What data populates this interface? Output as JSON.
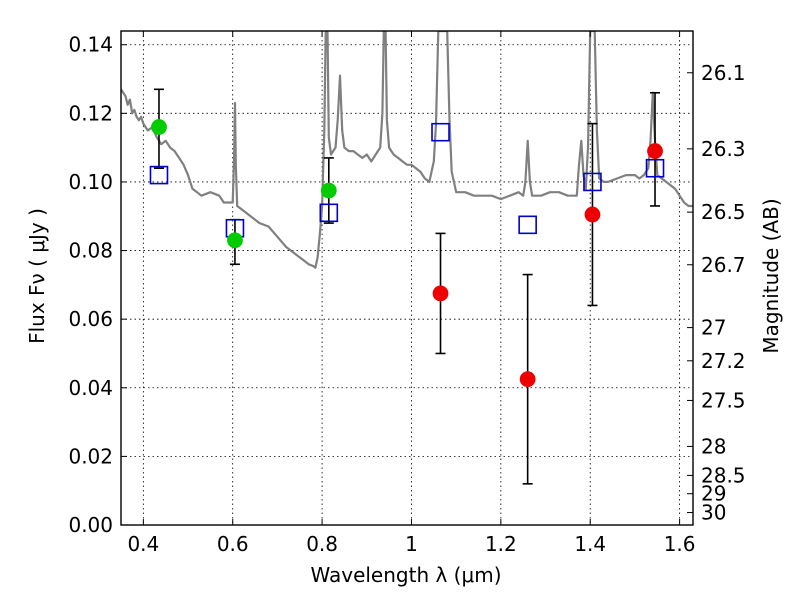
{
  "chart_data": {
    "type": "scatter",
    "xlabel": "Wavelength  λ (μm)",
    "ylabel": "Flux  Fν  ( μJy )",
    "ylabel2": "Magnitude (AB)",
    "xlim": [
      0.35,
      1.63
    ],
    "ylim": [
      0.0,
      0.144
    ],
    "grid": true,
    "x_ticks": [
      {
        "value": 0.4,
        "label": "0.4"
      },
      {
        "value": 0.6,
        "label": "0.6"
      },
      {
        "value": 0.8,
        "label": "0.8"
      },
      {
        "value": 1.0,
        "label": "1"
      },
      {
        "value": 1.2,
        "label": "1.2"
      },
      {
        "value": 1.4,
        "label": "1.4"
      },
      {
        "value": 1.6,
        "label": "1.6"
      }
    ],
    "y_ticks": [
      {
        "value": 0.0,
        "label": "0.00"
      },
      {
        "value": 0.02,
        "label": "0.02"
      },
      {
        "value": 0.04,
        "label": "0.04"
      },
      {
        "value": 0.06,
        "label": "0.06"
      },
      {
        "value": 0.08,
        "label": "0.08"
      },
      {
        "value": 0.1,
        "label": "0.10"
      },
      {
        "value": 0.12,
        "label": "0.12"
      },
      {
        "value": 0.14,
        "label": "0.14"
      }
    ],
    "mag_ticks": [
      {
        "mag": 26.1,
        "label": "26.1"
      },
      {
        "mag": 26.3,
        "label": "26.3"
      },
      {
        "mag": 26.5,
        "label": "26.5"
      },
      {
        "mag": 26.7,
        "label": "26.7"
      },
      {
        "mag": 27.0,
        "label": "27"
      },
      {
        "mag": 27.2,
        "label": "27.2"
      },
      {
        "mag": 27.5,
        "label": "27.5"
      },
      {
        "mag": 28.0,
        "label": "28"
      },
      {
        "mag": 28.5,
        "label": "28.5"
      },
      {
        "mag": 29.0,
        "label": "29"
      },
      {
        "mag": 30.0,
        "label": "30"
      }
    ],
    "model_spectrum": {
      "color": "#808080",
      "points": [
        [
          0.35,
          0.127
        ],
        [
          0.36,
          0.125
        ],
        [
          0.365,
          0.1225
        ],
        [
          0.37,
          0.124
        ],
        [
          0.375,
          0.12
        ],
        [
          0.38,
          0.121
        ],
        [
          0.385,
          0.119
        ],
        [
          0.39,
          0.118
        ],
        [
          0.395,
          0.119
        ],
        [
          0.4,
          0.117
        ],
        [
          0.41,
          0.115
        ],
        [
          0.42,
          0.116
        ],
        [
          0.43,
          0.113
        ],
        [
          0.44,
          0.111
        ],
        [
          0.45,
          0.112
        ],
        [
          0.46,
          0.11
        ],
        [
          0.47,
          0.109
        ],
        [
          0.48,
          0.107
        ],
        [
          0.49,
          0.105
        ],
        [
          0.5,
          0.102
        ],
        [
          0.51,
          0.098
        ],
        [
          0.52,
          0.097
        ],
        [
          0.53,
          0.096
        ],
        [
          0.55,
          0.097
        ],
        [
          0.57,
          0.096
        ],
        [
          0.58,
          0.094
        ],
        [
          0.595,
          0.094
        ],
        [
          0.6,
          0.094
        ],
        [
          0.603,
          0.107
        ],
        [
          0.605,
          0.123
        ],
        [
          0.607,
          0.105
        ],
        [
          0.61,
          0.093
        ],
        [
          0.62,
          0.092
        ],
        [
          0.64,
          0.09
        ],
        [
          0.66,
          0.088
        ],
        [
          0.68,
          0.087
        ],
        [
          0.7,
          0.084
        ],
        [
          0.72,
          0.081
        ],
        [
          0.74,
          0.079
        ],
        [
          0.76,
          0.077
        ],
        [
          0.77,
          0.076
        ],
        [
          0.78,
          0.0755
        ],
        [
          0.785,
          0.075
        ],
        [
          0.79,
          0.078
        ],
        [
          0.795,
          0.085
        ],
        [
          0.8,
          0.093
        ],
        [
          0.805,
          0.115
        ],
        [
          0.808,
          0.144
        ],
        [
          0.812,
          0.144
        ],
        [
          0.815,
          0.113
        ],
        [
          0.82,
          0.108
        ],
        [
          0.83,
          0.11
        ],
        [
          0.835,
          0.118
        ],
        [
          0.84,
          0.131
        ],
        [
          0.845,
          0.115
        ],
        [
          0.85,
          0.11
        ],
        [
          0.86,
          0.109
        ],
        [
          0.87,
          0.109
        ],
        [
          0.88,
          0.108
        ],
        [
          0.89,
          0.107
        ],
        [
          0.9,
          0.108
        ],
        [
          0.91,
          0.106
        ],
        [
          0.92,
          0.108
        ],
        [
          0.93,
          0.11
        ],
        [
          0.935,
          0.12
        ],
        [
          0.938,
          0.144
        ],
        [
          0.942,
          0.144
        ],
        [
          0.945,
          0.118
        ],
        [
          0.95,
          0.11
        ],
        [
          0.96,
          0.108
        ],
        [
          0.97,
          0.107
        ],
        [
          0.98,
          0.106
        ],
        [
          0.99,
          0.105
        ],
        [
          1.0,
          0.105
        ],
        [
          1.01,
          0.104
        ],
        [
          1.02,
          0.103
        ],
        [
          1.025,
          0.102
        ],
        [
          1.03,
          0.101
        ],
        [
          1.04,
          0.1
        ],
        [
          1.05,
          0.106
        ],
        [
          1.055,
          0.117
        ],
        [
          1.06,
          0.144
        ],
        [
          1.08,
          0.144
        ],
        [
          1.085,
          0.118
        ],
        [
          1.09,
          0.103
        ],
        [
          1.1,
          0.097
        ],
        [
          1.11,
          0.097
        ],
        [
          1.12,
          0.097
        ],
        [
          1.14,
          0.096
        ],
        [
          1.16,
          0.096
        ],
        [
          1.18,
          0.096
        ],
        [
          1.2,
          0.095
        ],
        [
          1.22,
          0.096
        ],
        [
          1.24,
          0.097
        ],
        [
          1.25,
          0.096
        ],
        [
          1.255,
          0.1
        ],
        [
          1.26,
          0.112
        ],
        [
          1.265,
          0.1
        ],
        [
          1.27,
          0.096
        ],
        [
          1.29,
          0.096
        ],
        [
          1.31,
          0.097
        ],
        [
          1.33,
          0.097
        ],
        [
          1.35,
          0.096
        ],
        [
          1.37,
          0.096
        ],
        [
          1.375,
          0.105
        ],
        [
          1.38,
          0.112
        ],
        [
          1.385,
          0.102
        ],
        [
          1.39,
          0.098
        ],
        [
          1.395,
          0.11
        ],
        [
          1.4,
          0.144
        ],
        [
          1.41,
          0.144
        ],
        [
          1.415,
          0.115
        ],
        [
          1.42,
          0.101
        ],
        [
          1.43,
          0.1
        ],
        [
          1.44,
          0.1
        ],
        [
          1.46,
          0.101
        ],
        [
          1.48,
          0.102
        ],
        [
          1.5,
          0.102
        ],
        [
          1.51,
          0.101
        ],
        [
          1.52,
          0.102
        ],
        [
          1.53,
          0.104
        ],
        [
          1.535,
          0.112
        ],
        [
          1.54,
          0.126
        ],
        [
          1.545,
          0.112
        ],
        [
          1.55,
          0.102
        ],
        [
          1.56,
          0.101
        ],
        [
          1.57,
          0.1
        ],
        [
          1.58,
          0.099
        ],
        [
          1.59,
          0.098
        ],
        [
          1.6,
          0.096
        ],
        [
          1.61,
          0.094
        ],
        [
          1.62,
          0.093
        ],
        [
          1.63,
          0.093
        ]
      ]
    },
    "model_photometry": {
      "marker": "open-square",
      "color": "#0000cc",
      "points": [
        {
          "x": 0.435,
          "y": 0.102
        },
        {
          "x": 0.605,
          "y": 0.0865
        },
        {
          "x": 0.815,
          "y": 0.091
        },
        {
          "x": 1.065,
          "y": 0.1145
        },
        {
          "x": 1.26,
          "y": 0.0875
        },
        {
          "x": 1.405,
          "y": 0.1
        },
        {
          "x": 1.545,
          "y": 0.104
        }
      ]
    },
    "detections": {
      "marker": "filled-circle",
      "color": "#00cc00",
      "points": [
        {
          "x": 0.435,
          "y": 0.116,
          "yerr_low": 0.104,
          "yerr_high": 0.127
        },
        {
          "x": 0.605,
          "y": 0.083,
          "yerr_low": 0.076,
          "yerr_high": 0.089
        },
        {
          "x": 0.815,
          "y": 0.0975,
          "yerr_low": 0.088,
          "yerr_high": 0.107
        }
      ]
    },
    "low_significance": {
      "marker": "filled-circle",
      "color": "#ee0000",
      "points": [
        {
          "x": 1.065,
          "y": 0.0675,
          "yerr_low": 0.05,
          "yerr_high": 0.085
        },
        {
          "x": 1.26,
          "y": 0.0425,
          "yerr_low": 0.012,
          "yerr_high": 0.073
        },
        {
          "x": 1.405,
          "y": 0.0905,
          "yerr_low": 0.064,
          "yerr_high": 0.117
        },
        {
          "x": 1.545,
          "y": 0.109,
          "yerr_low": 0.093,
          "yerr_high": 0.126
        }
      ]
    }
  }
}
